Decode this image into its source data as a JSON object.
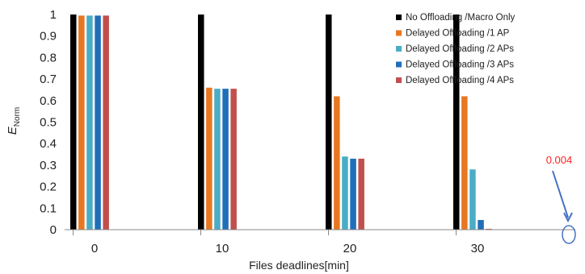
{
  "chart_data": {
    "type": "bar",
    "categories": [
      "0",
      "10",
      "20",
      "30"
    ],
    "xlabel": "Files deadlines[min]",
    "ylabel_main": "E",
    "ylabel_sub": "Norm",
    "ylim": [
      0,
      1
    ],
    "yticks": [
      "0",
      "0.1",
      "0.2",
      "0.3",
      "0.4",
      "0.5",
      "0.6",
      "0.7",
      "0.8",
      "0.9",
      "1"
    ],
    "grid": false,
    "legend_position": "top-right",
    "series": [
      {
        "name": "No Offloading /Macro Only",
        "color": "#000000",
        "values": [
          1.0,
          1.0,
          1.0,
          1.0
        ]
      },
      {
        "name": "Delayed Offloading /1 AP",
        "color": "#E87722",
        "values": [
          0.995,
          0.66,
          0.62,
          0.62
        ]
      },
      {
        "name": "Delayed Offloading /2 APs",
        "color": "#4BACC6",
        "values": [
          0.995,
          0.655,
          0.34,
          0.28
        ]
      },
      {
        "name": "Delayed Offloading /3 APs",
        "color": "#1F6FB8",
        "values": [
          0.995,
          0.655,
          0.33,
          0.045
        ]
      },
      {
        "name": "Delayed Offloading /4 APs",
        "color": "#C0504D",
        "values": [
          0.995,
          0.655,
          0.33,
          0.004
        ]
      }
    ],
    "annotation": {
      "text": "0.004",
      "color": "#FF2020",
      "arrow_color": "#4472C4"
    }
  }
}
